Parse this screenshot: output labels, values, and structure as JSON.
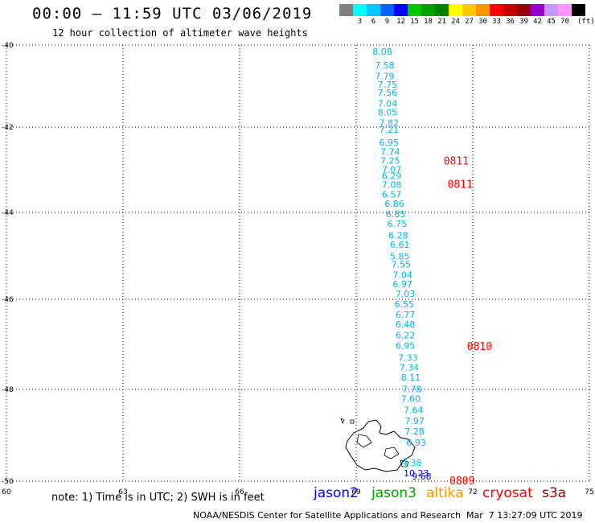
{
  "header": {
    "title": "00:00 – 11:59 UTC 03/06/2019",
    "subtitle": "12 hour collection of altimeter wave heights"
  },
  "color_scale": {
    "unit": "(ft)",
    "entries": [
      {
        "label": "",
        "color": "#808080"
      },
      {
        "label": "3",
        "color": "#00ffff"
      },
      {
        "label": "6",
        "color": "#00c8ff"
      },
      {
        "label": "9",
        "color": "#0064ff"
      },
      {
        "label": "12",
        "color": "#0000ff"
      },
      {
        "label": "15",
        "color": "#00c800"
      },
      {
        "label": "18",
        "color": "#00a000"
      },
      {
        "label": "21",
        "color": "#008000"
      },
      {
        "label": "24",
        "color": "#ffff00"
      },
      {
        "label": "27",
        "color": "#ffc800"
      },
      {
        "label": "30",
        "color": "#ff9600"
      },
      {
        "label": "33",
        "color": "#ff0000"
      },
      {
        "label": "36",
        "color": "#c80000"
      },
      {
        "label": "39",
        "color": "#960000"
      },
      {
        "label": "42",
        "color": "#9600c8"
      },
      {
        "label": "45",
        "color": "#c896ff"
      },
      {
        "label": "70",
        "color": "#ff96ff"
      },
      {
        "label": "",
        "color": "#000000"
      }
    ]
  },
  "axes": {
    "lat_labels": [
      "-40",
      "-42",
      "-44",
      "-46",
      "-48",
      "-50"
    ],
    "lon_labels": [
      "60",
      "63",
      "66",
      "69",
      "72",
      "75"
    ]
  },
  "track_values": [
    {
      "v": "8.08",
      "lat": -40.0,
      "lon": 69.42
    },
    {
      "v": "7.58",
      "lat": -40.33,
      "lon": 69.48
    },
    {
      "v": "7.79",
      "lat": -40.6,
      "lon": 69.48
    },
    {
      "v": "7.75",
      "lat": -40.8,
      "lon": 69.55
    },
    {
      "v": "7.56",
      "lat": -41.0,
      "lon": 69.55
    },
    {
      "v": "7.04",
      "lat": -41.26,
      "lon": 69.55
    },
    {
      "v": "8.05",
      "lat": -41.48,
      "lon": 69.55
    },
    {
      "v": "7.82",
      "lat": -41.74,
      "lon": 69.59
    },
    {
      "v": "7.21",
      "lat": -41.9,
      "lon": 69.59
    },
    {
      "v": "6.95",
      "lat": -42.21,
      "lon": 69.59
    },
    {
      "v": "7.74",
      "lat": -42.42,
      "lon": 69.62
    },
    {
      "v": "7.25",
      "lat": -42.63,
      "lon": 69.62
    },
    {
      "v": "7.07",
      "lat": -42.84,
      "lon": 69.66
    },
    {
      "v": "6.29",
      "lat": -42.99,
      "lon": 69.66
    },
    {
      "v": "7.08",
      "lat": -43.2,
      "lon": 69.66
    },
    {
      "v": "6.57",
      "lat": -43.42,
      "lon": 69.66
    },
    {
      "v": "6.86",
      "lat": -43.64,
      "lon": 69.73
    },
    {
      "v": "6.85",
      "lat": -43.89,
      "lon": 69.76
    },
    {
      "v": "6.75",
      "lat": -44.11,
      "lon": 69.8
    },
    {
      "v": "6.28",
      "lat": -44.38,
      "lon": 69.83
    },
    {
      "v": "6.61",
      "lat": -44.59,
      "lon": 69.87
    },
    {
      "v": "5.85",
      "lat": -44.86,
      "lon": 69.87
    },
    {
      "v": "7.55",
      "lat": -45.05,
      "lon": 69.9
    },
    {
      "v": "7.04",
      "lat": -45.29,
      "lon": 69.94
    },
    {
      "v": "6.97",
      "lat": -45.5,
      "lon": 69.94
    },
    {
      "v": "7.03",
      "lat": -45.72,
      "lon": 70.01
    },
    {
      "v": "6.55",
      "lat": -45.96,
      "lon": 69.98
    },
    {
      "v": "6.77",
      "lat": -46.2,
      "lon": 70.01
    },
    {
      "v": "6.48",
      "lat": -46.41,
      "lon": 70.01
    },
    {
      "v": "6.22",
      "lat": -46.65,
      "lon": 70.01
    },
    {
      "v": "6.95",
      "lat": -46.88,
      "lon": 70.01
    },
    {
      "v": "7.33",
      "lat": -47.15,
      "lon": 70.08
    },
    {
      "v": "7.34",
      "lat": -47.37,
      "lon": 70.11
    },
    {
      "v": "8.11",
      "lat": -47.59,
      "lon": 70.15
    },
    {
      "v": "7.78",
      "lat": -47.85,
      "lon": 70.18
    },
    {
      "v": "7.60",
      "lat": -48.06,
      "lon": 70.15
    },
    {
      "v": "7.64",
      "lat": -48.31,
      "lon": 70.22
    },
    {
      "v": "7.97",
      "lat": -48.54,
      "lon": 70.25
    },
    {
      "v": "7.28",
      "lat": -48.77,
      "lon": 70.25
    },
    {
      "v": "6.93",
      "lat": -49.02,
      "lon": 70.29
    }
  ],
  "other_values": [
    {
      "v": "4.38",
      "lat": -49.7,
      "lon": 70.18,
      "color": "#00c8ff"
    },
    {
      "v": "10.23",
      "lat": -49.93,
      "lon": 70.22,
      "color": "#0000ff"
    },
    {
      "v": "9.68",
      "lat": -50.0,
      "lon": 70.43,
      "color": "#0000ff"
    }
  ],
  "time_labels": [
    {
      "v": "0811",
      "lat": -42.8,
      "lon": 71.25
    },
    {
      "v": "0811",
      "lat": -43.35,
      "lon": 71.35
    },
    {
      "v": "0810",
      "lat": -47.05,
      "lon": 71.85
    },
    {
      "v": "0809",
      "lat": -50.0,
      "lon": 71.4
    }
  ],
  "note": "note: 1) Time is in UTC; 2) SWH is in feet",
  "legend": [
    {
      "label": "jason2",
      "color": "#0000ff"
    },
    {
      "label": "jason3",
      "color": "#00a000"
    },
    {
      "label": "altika",
      "color": "#ff9600"
    },
    {
      "label": "cryosat",
      "color": "#ff0000"
    },
    {
      "label": "s3a",
      "color": "#960000"
    }
  ],
  "credit": "NOAA/NESDIS Center for Satellite Applications and Research",
  "credit_time": "Mar  7 13:27:09 UTC 2019",
  "colors": {
    "track": "#00b4e6",
    "time": "#ff0000",
    "grid": "#000000"
  }
}
